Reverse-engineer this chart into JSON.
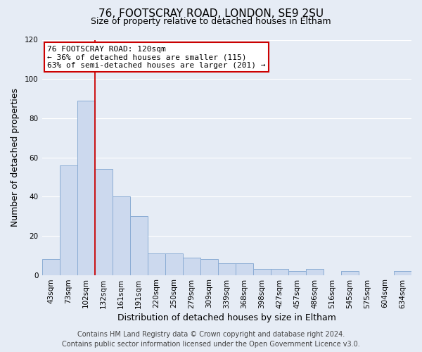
{
  "title": "76, FOOTSCRAY ROAD, LONDON, SE9 2SU",
  "subtitle": "Size of property relative to detached houses in Eltham",
  "xlabel": "Distribution of detached houses by size in Eltham",
  "ylabel": "Number of detached properties",
  "categories": [
    "43sqm",
    "73sqm",
    "102sqm",
    "132sqm",
    "161sqm",
    "191sqm",
    "220sqm",
    "250sqm",
    "279sqm",
    "309sqm",
    "339sqm",
    "368sqm",
    "398sqm",
    "427sqm",
    "457sqm",
    "486sqm",
    "516sqm",
    "545sqm",
    "575sqm",
    "604sqm",
    "634sqm"
  ],
  "values": [
    8,
    56,
    89,
    54,
    40,
    30,
    11,
    11,
    9,
    8,
    6,
    6,
    3,
    3,
    2,
    3,
    0,
    2,
    0,
    0,
    2
  ],
  "bar_color": "#ccd9ee",
  "bar_edge_color": "#8aacd4",
  "ylim": [
    0,
    120
  ],
  "yticks": [
    0,
    20,
    40,
    60,
    80,
    100,
    120
  ],
  "red_line_x": 2.5,
  "annotation_title": "76 FOOTSCRAY ROAD: 120sqm",
  "annotation_line1": "← 36% of detached houses are smaller (115)",
  "annotation_line2": "63% of semi-detached houses are larger (201) →",
  "annotation_box_facecolor": "#ffffff",
  "annotation_box_edgecolor": "#cc0000",
  "footer_line1": "Contains HM Land Registry data © Crown copyright and database right 2024.",
  "footer_line2": "Contains public sector information licensed under the Open Government Licence v3.0.",
  "background_color": "#e6ecf5",
  "plot_bg_color": "#e6ecf5",
  "grid_color": "#ffffff",
  "title_fontsize": 11,
  "subtitle_fontsize": 9,
  "axis_label_fontsize": 9,
  "tick_fontsize": 7.5,
  "annotation_fontsize": 8,
  "footer_fontsize": 7
}
